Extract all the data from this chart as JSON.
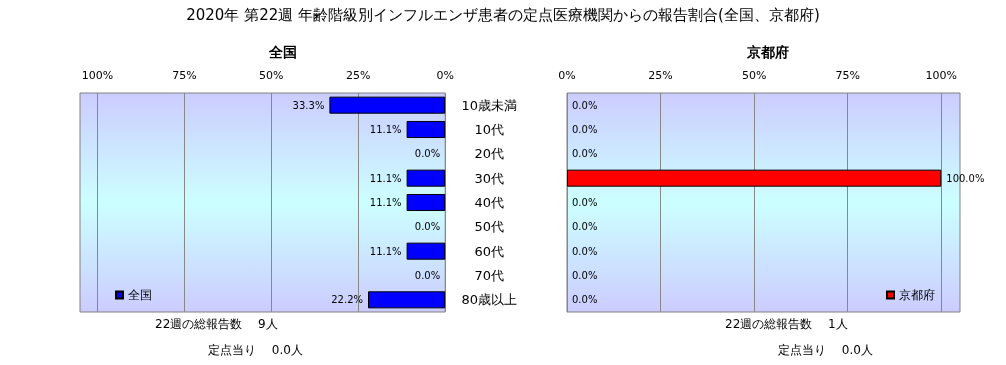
{
  "chart_data": [
    {
      "type": "bar",
      "orientation": "horizontal",
      "title": "2020年 第22週 年齢階級別インフルエンザ患者の定点医療機関からの報告割合(全国、京都府)",
      "subtitle": "全国",
      "categories": [
        "10歳未満",
        "10代",
        "20代",
        "30代",
        "40代",
        "50代",
        "60代",
        "70代",
        "80歳以上"
      ],
      "series": [
        {
          "name": "全国",
          "color": "#0000ff",
          "values": [
            33.3,
            11.1,
            0,
            11.1,
            11.1,
            0,
            11.1,
            0,
            22.2
          ],
          "value_labels": [
            "33.3%",
            "11.1%",
            "0.0%",
            "11.1%",
            "11.1%",
            "0.0%",
            "11.1%",
            "0.0%",
            "22.2%"
          ]
        }
      ],
      "xlim": [
        105,
        0
      ],
      "xticks": [
        {
          "value": 100,
          "label": "100%"
        },
        {
          "value": 75,
          "label": "75%"
        },
        {
          "value": 50,
          "label": "50%"
        },
        {
          "value": 25,
          "label": "25%"
        },
        {
          "value": 0,
          "label": "0%"
        }
      ],
      "grid": "x",
      "legend": "bottom left",
      "annotations": [
        "22週の総報告数　 9人",
        "定点当り　 0.0人"
      ]
    },
    {
      "type": "bar",
      "orientation": "horizontal",
      "title": "京都府",
      "categories": [
        null,
        null,
        null,
        null,
        null,
        null,
        null,
        null,
        null
      ],
      "series": [
        {
          "name": "京都府",
          "color": "#ff0000",
          "values": [
            0,
            0,
            0,
            100,
            0,
            0,
            0,
            0,
            0
          ],
          "value_labels": [
            "0.0%",
            "0.0%",
            "0.0%",
            "100.0%",
            "0.0%",
            "0.0%",
            "0.0%",
            "0.0%",
            "0.0%"
          ]
        }
      ],
      "xlim": [
        0,
        105
      ],
      "xticks": [
        {
          "value": 0,
          "label": "0%"
        },
        {
          "value": 25,
          "label": "25%"
        },
        {
          "value": 50,
          "label": "50%"
        },
        {
          "value": 75,
          "label": "75%"
        },
        {
          "value": 100,
          "label": "100%"
        }
      ],
      "grid": "x",
      "legend": "bottom right",
      "annotations": [
        "22週の総報告数　 1人",
        "定点当り　 0.0人"
      ]
    }
  ]
}
